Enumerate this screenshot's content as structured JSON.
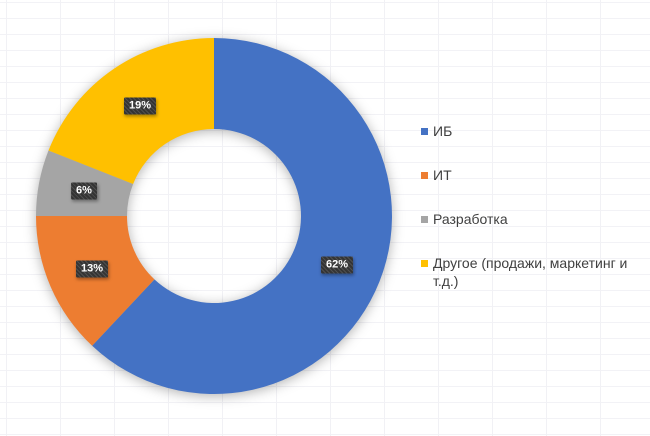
{
  "chart_data": {
    "type": "pie",
    "subtype": "donut",
    "categories": [
      "ИБ",
      "ИТ",
      "Разработка",
      "Другое (продажи, маркетинг и т.д.)"
    ],
    "values": [
      62,
      13,
      6,
      19
    ],
    "data_labels": [
      "62%",
      "13%",
      "6%",
      "19%"
    ],
    "unit": "%",
    "colors": [
      "#4472C4",
      "#ED7D31",
      "#A5A5A5",
      "#FFC000"
    ],
    "start_angle_deg": 0,
    "direction": "clockwise",
    "donut_hole_ratio": 0.49,
    "legend_position": "right",
    "data_label_style": {
      "background_color": "#3B3B3B",
      "text_color": "#FFFFFF"
    },
    "background": {
      "fill": "#FFFFFF",
      "gridlines_visible": true
    }
  }
}
